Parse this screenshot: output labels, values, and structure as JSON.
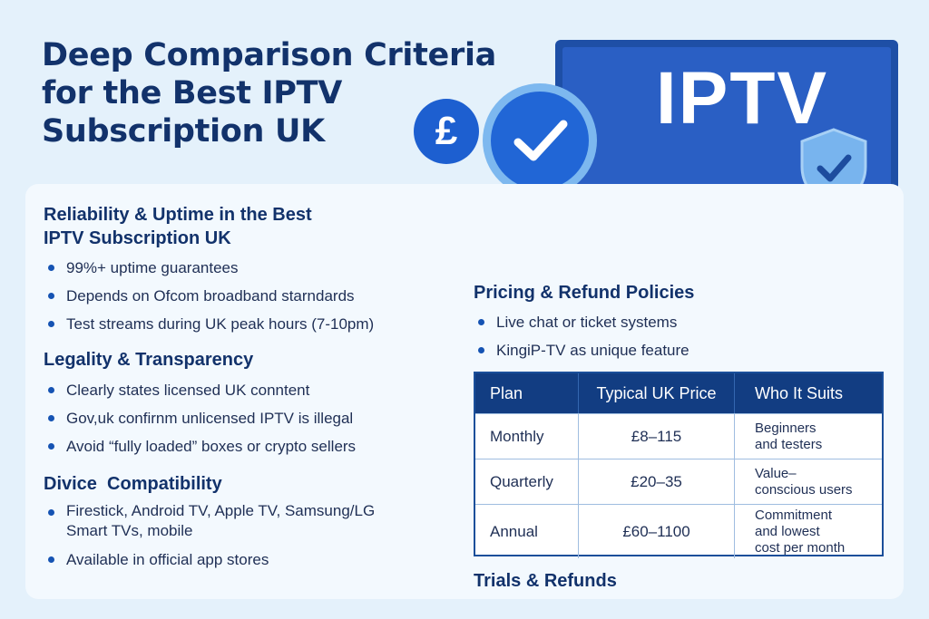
{
  "title": "Deep Comparison Criteria for the Best IPTV Subscription UK",
  "icons": {
    "pound": "pound-sign-icon",
    "check": "check-badge-icon",
    "tv": "tv-icon",
    "shield": "shield-check-icon"
  },
  "tv_label": "IPTV",
  "pound_symbol": "£",
  "sections": {
    "reliability": {
      "title_line1": "Reliability & Uptime in the Best",
      "title_line2": "IPTV Subscription UK",
      "bullets": [
        "99%+ uptime guarantees",
        "Depends on Ofcom broadband starndards",
        "Test streams during UK peak hours (7-10pm)"
      ]
    },
    "legality": {
      "title": "Legality & Transparency",
      "bullets": [
        "Clearly states licensed UK conntent",
        "Gov,uk confirnm unlicensed IPTV is illegal",
        "Avoid “fully loaded” boxes or crypto sellers"
      ]
    },
    "device": {
      "title": "Divice  Compatibility",
      "bullet1_line1": "Firestick, Android TV, Apple TV, Samsung/LG",
      "bullet1_line2": "Smart TVs, mobile",
      "bullet2": "Available in official app stores"
    },
    "pricing": {
      "title": "Pricing & Refund Policies",
      "bullets": [
        "Live chat or ticket systems",
        "KingiP-TV as unique feature"
      ]
    },
    "trials": {
      "title": "Trials & Refunds"
    }
  },
  "table": {
    "headers": [
      "Plan",
      "Typical UK Price",
      "Who It Suits"
    ],
    "rows": [
      {
        "plan": "Monthly",
        "price": "£8–115",
        "suits_line1": "Beginners",
        "suits_line2": "and testers",
        "suits_line3": ""
      },
      {
        "plan": "Quarterly",
        "price": "£20–35",
        "suits_line1": "Value–",
        "suits_line2": "conscious users",
        "suits_line3": ""
      },
      {
        "plan": "Annual",
        "price": "£60–1100",
        "suits_line1": "Commitment",
        "suits_line2": "and lowest",
        "suits_line3": "cost per month"
      }
    ]
  },
  "colors": {
    "background": "#e4f1fb",
    "navy": "#12326b",
    "accent": "#1d5fd0",
    "tv_screen": "#2a5fc4"
  }
}
